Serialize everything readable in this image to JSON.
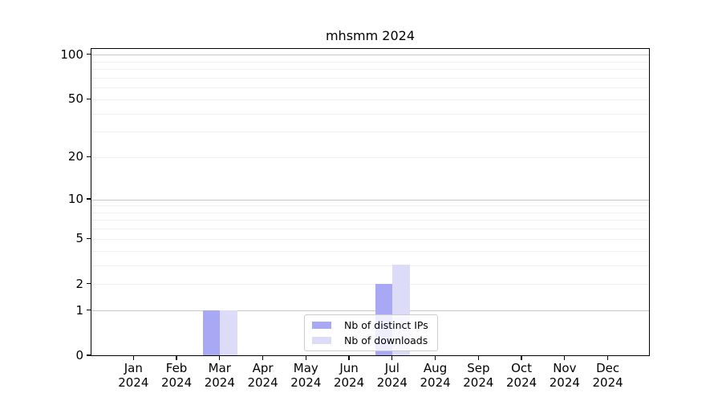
{
  "title": "mhsmm 2024",
  "chart_data": {
    "type": "bar",
    "title": "mhsmm 2024",
    "categories": [
      "Jan 2024",
      "Feb 2024",
      "Mar 2024",
      "Apr 2024",
      "May 2024",
      "Jun 2024",
      "Jul 2024",
      "Aug 2024",
      "Sep 2024",
      "Oct 2024",
      "Nov 2024",
      "Dec 2024"
    ],
    "series": [
      {
        "name": "Nb of distinct IPs",
        "values": [
          0,
          0,
          1,
          0,
          0,
          0,
          2,
          0,
          0,
          0,
          0,
          0
        ],
        "color": "#a8a8f4"
      },
      {
        "name": "Nb of downloads",
        "values": [
          0,
          0,
          1,
          0,
          0,
          0,
          3,
          0,
          0,
          0,
          0,
          0
        ],
        "color": "#dcdcf9"
      }
    ],
    "xlabel": "",
    "ylabel": "",
    "y_scale": "log1p",
    "y_ticks": [
      0,
      1,
      2,
      5,
      10,
      20,
      50,
      100
    ],
    "ylim": [
      0,
      112
    ],
    "grid": "horizontal",
    "grid_major_values": [
      1,
      10,
      100
    ],
    "grid_minor_values": [
      2,
      3,
      4,
      5,
      6,
      7,
      8,
      9,
      20,
      30,
      40,
      50,
      60,
      70,
      80,
      90
    ],
    "grid_major_color": "#c8c8c8",
    "grid_minor_color": "#f0f0f0",
    "legend_position": "lower center inside"
  }
}
